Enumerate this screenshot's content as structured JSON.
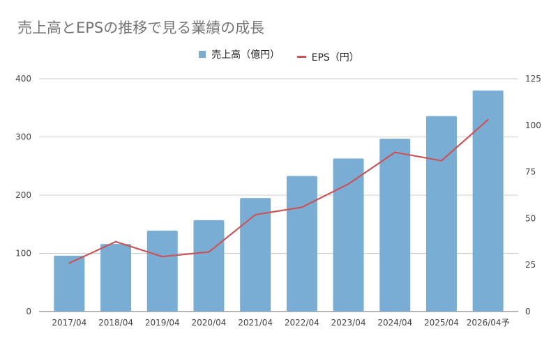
{
  "chart_data": {
    "type": "bar+line",
    "title": "売上高とEPSの推移で見る業績の成長",
    "categories": [
      "2017/04",
      "2018/04",
      "2019/04",
      "2020/04",
      "2021/04",
      "2022/04",
      "2023/04",
      "2024/04",
      "2025/04",
      "2026/04予"
    ],
    "series": [
      {
        "name": "売上高（億円）",
        "type": "bar",
        "axis": "left",
        "color": "#7aadd3",
        "values": [
          96,
          116,
          139,
          157,
          195,
          233,
          263,
          297,
          336,
          380
        ]
      },
      {
        "name": "EPS（円）",
        "type": "line",
        "axis": "right",
        "color": "#c9555a",
        "values": [
          26,
          37.5,
          29.5,
          32,
          52,
          56,
          68.5,
          85.5,
          81,
          103
        ]
      }
    ],
    "left_axis": {
      "label": "",
      "ylim": [
        0,
        400
      ],
      "ticks": [
        "0",
        "100",
        "200",
        "300",
        "400"
      ]
    },
    "right_axis": {
      "label": "",
      "ylim": [
        0,
        125
      ],
      "ticks": [
        "0",
        "25",
        "50",
        "75",
        "100",
        "125"
      ]
    },
    "xlabel": "",
    "grid": true,
    "legend_position": "top-center"
  }
}
